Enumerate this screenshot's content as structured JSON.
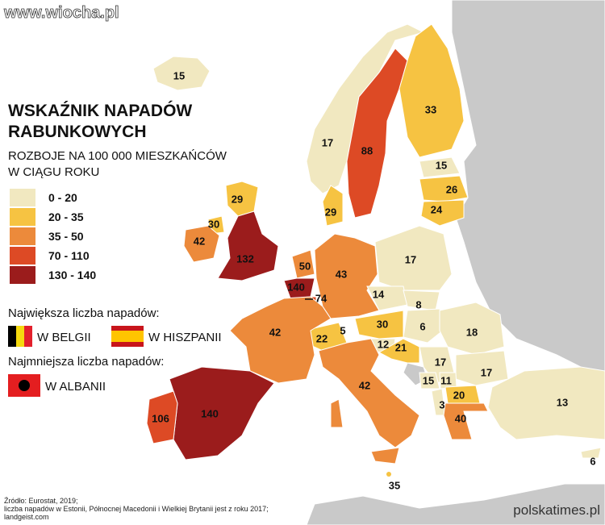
{
  "watermark": "www.wiocha.pl",
  "header": {
    "title_lines": [
      "WSKAŹNIK NAPADÓW",
      "RABUNKOWYCH"
    ],
    "subtitle_lines": [
      "ROZBOJE NA 100 000 MIESZKAŃCÓW",
      "W CIĄGU ROKU"
    ]
  },
  "legend": [
    {
      "label": "0 - 20",
      "color": "#f1e8c0"
    },
    {
      "label": "20 - 35",
      "color": "#f6c342"
    },
    {
      "label": "35 - 50",
      "color": "#ec8a3b"
    },
    {
      "label": "70 - 110",
      "color": "#dd4a25"
    },
    {
      "label": "130 - 140",
      "color": "#9b1c1c"
    }
  ],
  "most": {
    "heading": "Największa liczba napadów:",
    "items": [
      "W BELGII",
      "W HISZPANII"
    ]
  },
  "least": {
    "heading": "Najmniejsza liczba napadów:",
    "items": [
      "W ALBANII"
    ]
  },
  "regions": [
    {
      "value": 15
    },
    {
      "value": 17
    },
    {
      "value": 88
    },
    {
      "value": 33
    },
    {
      "value": 15
    },
    {
      "value": 26
    },
    {
      "value": 24
    },
    {
      "value": 29
    },
    {
      "value": 29
    },
    {
      "value": 30
    },
    {
      "value": 42
    },
    {
      "value": 132
    },
    {
      "value": 50
    },
    {
      "value": 140
    },
    {
      "value": 74
    },
    {
      "value": 43
    },
    {
      "value": 17
    },
    {
      "value": 14
    },
    {
      "value": 8
    },
    {
      "value": 6
    },
    {
      "value": 30
    },
    {
      "value": 22
    },
    {
      "value": 5
    },
    {
      "value": 12
    },
    {
      "value": 21
    },
    {
      "value": 42
    },
    {
      "value": 18
    },
    {
      "value": 17
    },
    {
      "value": 17
    },
    {
      "value": 15
    },
    {
      "value": 11
    },
    {
      "value": 3
    },
    {
      "value": 20
    },
    {
      "value": 40
    },
    {
      "value": 42
    },
    {
      "value": 106
    },
    {
      "value": 140
    },
    {
      "value": 13
    },
    {
      "value": 6
    },
    {
      "value": 35
    }
  ],
  "source_lines": [
    "Źródło: Eurostat, 2019;",
    "liczba napadów w Estonii, Północnej Macedonii i Wielkiej Brytanii jest z roku 2017;",
    "landgeist.com"
  ],
  "brand": "polskatimes.pl"
}
